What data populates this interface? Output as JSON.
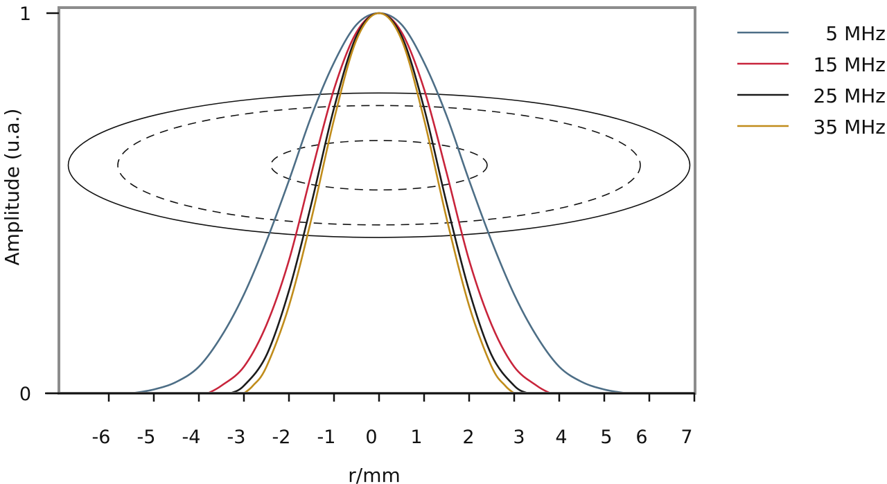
{
  "chart_data": {
    "type": "line",
    "title": "",
    "xlabel": "r/mm",
    "ylabel": "Amplitude (u.a.)",
    "xlim": [
      -7,
      7
    ],
    "ylim": [
      0,
      1
    ],
    "x_ticks": [
      -6,
      -5,
      -4,
      -3,
      -2,
      -1,
      0,
      1,
      2,
      3,
      4,
      5,
      6,
      7
    ],
    "x_tick_labels": [
      "-6",
      "-5",
      "-4",
      "-3",
      "-2",
      "-1",
      "0",
      "1",
      "2",
      "3",
      "4",
      "5",
      "6",
      "7"
    ],
    "y_ticks": [
      0,
      1
    ],
    "y_tick_labels": [
      "0",
      "1"
    ],
    "legend_position": "right, outside plot",
    "grid": false,
    "series": [
      {
        "name": "5 MHz",
        "color": "#4d6e86",
        "x": [
          -5.5,
          -5.0,
          -4.5,
          -4.0,
          -3.5,
          -3.0,
          -2.5,
          -2.0,
          -1.5,
          -1.0,
          -0.5,
          0,
          0.5,
          1.0,
          1.5,
          2.0,
          2.5,
          3.0,
          3.5,
          4.0,
          4.5,
          5.0,
          5.5
        ],
        "y": [
          0.0,
          0.01,
          0.03,
          0.07,
          0.15,
          0.26,
          0.4,
          0.56,
          0.73,
          0.87,
          0.97,
          1.0,
          0.97,
          0.87,
          0.73,
          0.56,
          0.4,
          0.26,
          0.15,
          0.07,
          0.03,
          0.01,
          0.0
        ]
      },
      {
        "name": "15 MHz",
        "color": "#c8243b",
        "x": [
          -3.8,
          -3.5,
          -3.0,
          -2.5,
          -2.0,
          -1.5,
          -1.0,
          -0.5,
          0,
          0.5,
          1.0,
          1.5,
          2.0,
          2.5,
          3.0,
          3.5,
          3.8
        ],
        "y": [
          0.0,
          0.02,
          0.07,
          0.18,
          0.35,
          0.58,
          0.8,
          0.95,
          1.0,
          0.95,
          0.8,
          0.58,
          0.35,
          0.18,
          0.07,
          0.02,
          0.0
        ]
      },
      {
        "name": "25 MHz",
        "color": "#1b1b1b",
        "x": [
          -3.3,
          -3.0,
          -2.5,
          -2.0,
          -1.5,
          -1.0,
          -0.5,
          0,
          0.5,
          1.0,
          1.5,
          2.0,
          2.5,
          3.0,
          3.3
        ],
        "y": [
          0.0,
          0.02,
          0.1,
          0.27,
          0.5,
          0.75,
          0.94,
          1.0,
          0.94,
          0.75,
          0.5,
          0.27,
          0.1,
          0.02,
          0.0
        ]
      },
      {
        "name": "35 MHz",
        "color": "#c08c1a",
        "x": [
          -3.0,
          -2.8,
          -2.5,
          -2.0,
          -1.5,
          -1.0,
          -0.5,
          0,
          0.5,
          1.0,
          1.5,
          2.0,
          2.5,
          2.8,
          3.0
        ],
        "y": [
          0.0,
          0.02,
          0.07,
          0.23,
          0.46,
          0.72,
          0.93,
          1.0,
          0.93,
          0.72,
          0.46,
          0.23,
          0.07,
          0.02,
          0.0
        ]
      }
    ],
    "annotations": [
      {
        "shape": "ellipse",
        "style": "solid",
        "cx": 0,
        "cy": 0.6,
        "rx": 6.9,
        "ry": 0.19
      },
      {
        "shape": "ellipse",
        "style": "dashed",
        "cx": 0,
        "cy": 0.6,
        "rx": 5.8,
        "ry": 0.157
      },
      {
        "shape": "ellipse",
        "style": "dashed",
        "cx": 0,
        "cy": 0.6,
        "rx": 2.4,
        "ry": 0.065
      }
    ]
  }
}
